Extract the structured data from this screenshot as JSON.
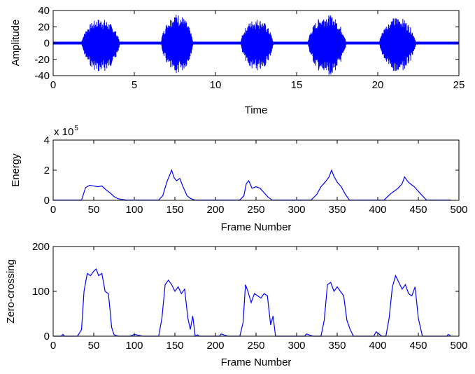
{
  "chart_data": [
    {
      "id": "waveform",
      "type": "line",
      "title": "",
      "xlabel": "Time",
      "ylabel": "Amplitude",
      "xlim": [
        0,
        25
      ],
      "ylim": [
        -40,
        40
      ],
      "xticks": [
        0,
        5,
        10,
        15,
        20,
        25
      ],
      "yticks": [
        -40,
        -20,
        0,
        20,
        40
      ],
      "xtick_labels": [
        "0",
        "5",
        "10",
        "15",
        "20",
        "25"
      ],
      "ytick_labels": [
        "-40",
        "-20",
        "0",
        "20",
        "40"
      ],
      "grid": false,
      "line_color": "#0000ff",
      "segments": [
        {
          "start": 1.75,
          "end": 4.2,
          "peak_max": 30,
          "peak_min": -36
        },
        {
          "start": 6.65,
          "end": 8.7,
          "peak_max": 36,
          "peak_min": -38
        },
        {
          "start": 11.55,
          "end": 13.65,
          "peak_max": 30,
          "peak_min": -35
        },
        {
          "start": 15.7,
          "end": 18.15,
          "peak_max": 35,
          "peak_min": -40
        },
        {
          "start": 20.1,
          "end": 22.45,
          "peak_max": 32,
          "peak_min": -36
        }
      ],
      "baseline_amplitude": 2
    },
    {
      "id": "energy",
      "type": "line",
      "title": "",
      "xlabel": "Frame Number",
      "ylabel": "Energy",
      "xlim": [
        0,
        500
      ],
      "ylim": [
        0,
        4
      ],
      "y_multiplier_label": "x 10",
      "y_multiplier_exponent": "5",
      "xticks": [
        0,
        50,
        100,
        150,
        200,
        250,
        300,
        350,
        400,
        450,
        500
      ],
      "yticks": [
        0,
        2,
        4
      ],
      "xtick_labels": [
        "0",
        "50",
        "100",
        "150",
        "200",
        "250",
        "300",
        "350",
        "400",
        "450",
        "500"
      ],
      "ytick_labels": [
        "0",
        "2",
        "4"
      ],
      "grid": false,
      "line_color": "#0000ff",
      "x": [
        0,
        35,
        40,
        45,
        50,
        55,
        60,
        65,
        70,
        75,
        80,
        90,
        130,
        135,
        140,
        143,
        146,
        149,
        152,
        156,
        160,
        165,
        170,
        175,
        230,
        235,
        238,
        241,
        245,
        250,
        255,
        260,
        265,
        270,
        318,
        325,
        330,
        335,
        340,
        343,
        346,
        350,
        355,
        360,
        365,
        408,
        415,
        420,
        425,
        430,
        433,
        437,
        440,
        445,
        450,
        455,
        460,
        490
      ],
      "y": [
        0.02,
        0.02,
        0.85,
        1.0,
        0.95,
        0.9,
        0.95,
        0.7,
        0.5,
        0.25,
        0.1,
        0.02,
        0.02,
        0.3,
        1.2,
        1.6,
        2.0,
        1.5,
        1.3,
        1.45,
        0.9,
        0.3,
        0.1,
        0.02,
        0.02,
        0.3,
        1.1,
        1.3,
        0.8,
        0.9,
        0.8,
        0.5,
        0.2,
        0.02,
        0.02,
        0.4,
        0.9,
        1.2,
        1.55,
        2.0,
        1.6,
        1.2,
        0.9,
        0.4,
        0.02,
        0.02,
        0.4,
        0.6,
        0.8,
        1.1,
        1.55,
        1.25,
        1.1,
        0.9,
        0.6,
        0.3,
        0.02,
        0.02
      ]
    },
    {
      "id": "zero-crossing",
      "type": "line",
      "title": "",
      "xlabel": "Frame Number",
      "ylabel": "Zero-crossing",
      "xlim": [
        0,
        500
      ],
      "ylim": [
        0,
        200
      ],
      "xticks": [
        0,
        50,
        100,
        150,
        200,
        250,
        300,
        350,
        400,
        450,
        500
      ],
      "yticks": [
        0,
        100,
        200
      ],
      "xtick_labels": [
        "0",
        "50",
        "100",
        "150",
        "200",
        "250",
        "300",
        "350",
        "400",
        "450",
        "500"
      ],
      "ytick_labels": [
        "0",
        "100",
        "200"
      ],
      "grid": false,
      "line_color": "#0000ff",
      "x": [
        0,
        10,
        12,
        14,
        30,
        35,
        38,
        42,
        46,
        50,
        53,
        56,
        60,
        64,
        68,
        70,
        72,
        75,
        80,
        85,
        95,
        100,
        110,
        115,
        130,
        134,
        138,
        142,
        146,
        150,
        154,
        158,
        162,
        166,
        169,
        172,
        175,
        178,
        180,
        200,
        205,
        207,
        215,
        225,
        230,
        234,
        237,
        240,
        244,
        248,
        252,
        256,
        260,
        264,
        268,
        271,
        274,
        277,
        280,
        300,
        310,
        312,
        320,
        330,
        334,
        338,
        342,
        346,
        350,
        354,
        358,
        362,
        366,
        370,
        390,
        395,
        398,
        405,
        410,
        414,
        418,
        422,
        426,
        430,
        434,
        438,
        442,
        446,
        450,
        455,
        470,
        485,
        487,
        490
      ],
      "y": [
        0,
        0,
        4,
        0,
        0,
        15,
        100,
        140,
        135,
        145,
        150,
        135,
        140,
        100,
        95,
        60,
        20,
        3,
        0,
        0,
        0,
        4,
        0,
        0,
        0,
        40,
        115,
        125,
        115,
        100,
        110,
        95,
        105,
        40,
        15,
        45,
        0,
        3,
        0,
        0,
        0,
        5,
        0,
        0,
        0,
        30,
        115,
        100,
        75,
        95,
        90,
        85,
        95,
        90,
        25,
        45,
        0,
        0,
        0,
        0,
        0,
        5,
        0,
        0,
        35,
        115,
        120,
        100,
        110,
        100,
        90,
        35,
        15,
        0,
        0,
        0,
        10,
        0,
        0,
        40,
        110,
        135,
        120,
        105,
        115,
        95,
        90,
        110,
        40,
        0,
        0,
        0,
        4,
        0
      ]
    }
  ]
}
